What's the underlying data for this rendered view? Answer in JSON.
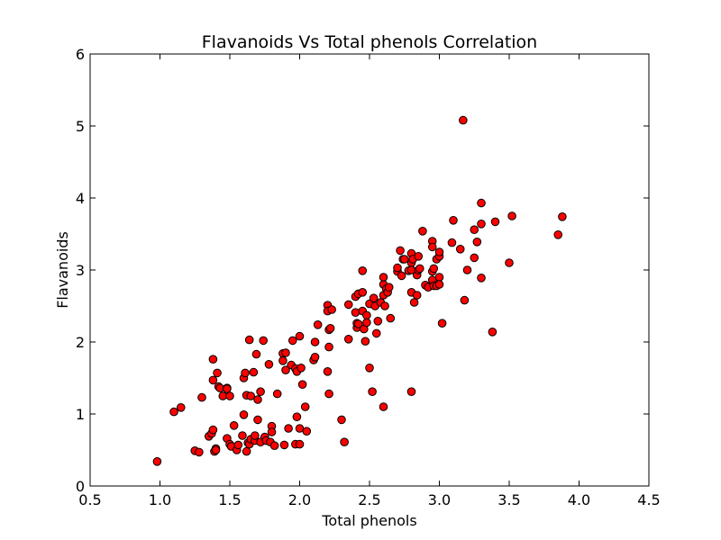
{
  "chart_data": {
    "type": "scatter",
    "title": "Flavanoids Vs Total phenols Correlation",
    "xlabel": "Total phenols",
    "ylabel": "Flavanoids",
    "xlim": [
      0.5,
      4.5
    ],
    "ylim": [
      0,
      6
    ],
    "xticks": [
      0.5,
      1.0,
      1.5,
      2.0,
      2.5,
      3.0,
      3.5,
      4.0,
      4.5
    ],
    "xtick_labels": [
      "0.5",
      "1.0",
      "1.5",
      "2.0",
      "2.5",
      "3.0",
      "3.5",
      "4.0",
      "4.5"
    ],
    "yticks": [
      0,
      1,
      2,
      3,
      4,
      5,
      6
    ],
    "ytick_labels": [
      "0",
      "1",
      "2",
      "3",
      "4",
      "5",
      "6"
    ],
    "grid": false,
    "marker_color": "#ff0000",
    "marker_edge_color": "#000000",
    "points": [
      [
        0.98,
        0.34
      ],
      [
        1.1,
        1.03
      ],
      [
        1.15,
        1.09
      ],
      [
        1.25,
        0.49
      ],
      [
        1.28,
        0.47
      ],
      [
        1.3,
        1.23
      ],
      [
        1.35,
        0.69
      ],
      [
        1.37,
        0.73
      ],
      [
        1.38,
        0.78
      ],
      [
        1.38,
        1.47
      ],
      [
        1.38,
        1.76
      ],
      [
        1.39,
        0.48
      ],
      [
        1.4,
        0.52
      ],
      [
        1.4,
        0.5
      ],
      [
        1.41,
        1.57
      ],
      [
        1.42,
        1.38
      ],
      [
        1.43,
        1.36
      ],
      [
        1.45,
        1.25
      ],
      [
        1.48,
        1.36
      ],
      [
        1.48,
        1.35
      ],
      [
        1.48,
        0.66
      ],
      [
        1.5,
        0.58
      ],
      [
        1.5,
        1.25
      ],
      [
        1.51,
        0.55
      ],
      [
        1.53,
        0.84
      ],
      [
        1.55,
        0.5
      ],
      [
        1.56,
        0.57
      ],
      [
        1.59,
        0.7
      ],
      [
        1.6,
        1.5
      ],
      [
        1.6,
        0.99
      ],
      [
        1.61,
        1.57
      ],
      [
        1.62,
        0.48
      ],
      [
        1.62,
        1.26
      ],
      [
        1.63,
        0.6
      ],
      [
        1.64,
        0.58
      ],
      [
        1.64,
        2.03
      ],
      [
        1.65,
        1.25
      ],
      [
        1.65,
        0.65
      ],
      [
        1.67,
        1.58
      ],
      [
        1.68,
        0.63
      ],
      [
        1.68,
        0.7
      ],
      [
        1.69,
        1.83
      ],
      [
        1.7,
        0.92
      ],
      [
        1.7,
        1.2
      ],
      [
        1.72,
        1.31
      ],
      [
        1.72,
        0.61
      ],
      [
        1.74,
        2.02
      ],
      [
        1.75,
        0.68
      ],
      [
        1.76,
        0.63
      ],
      [
        1.78,
        1.69
      ],
      [
        1.79,
        0.61
      ],
      [
        1.8,
        0.83
      ],
      [
        1.8,
        0.75
      ],
      [
        1.82,
        0.56
      ],
      [
        1.84,
        1.28
      ],
      [
        1.88,
        1.84
      ],
      [
        1.88,
        1.74
      ],
      [
        1.89,
        0.57
      ],
      [
        1.9,
        1.85
      ],
      [
        1.9,
        1.61
      ],
      [
        1.92,
        0.8
      ],
      [
        1.94,
        1.68
      ],
      [
        1.95,
        2.02
      ],
      [
        1.97,
        1.63
      ],
      [
        1.97,
        0.58
      ],
      [
        1.98,
        0.96
      ],
      [
        1.98,
        1.59
      ],
      [
        2.0,
        2.08
      ],
      [
        2.0,
        0.8
      ],
      [
        2.0,
        0.58
      ],
      [
        2.01,
        1.64
      ],
      [
        2.02,
        1.41
      ],
      [
        2.04,
        1.1
      ],
      [
        2.05,
        0.76
      ],
      [
        2.1,
        1.75
      ],
      [
        2.11,
        1.79
      ],
      [
        2.11,
        2.0
      ],
      [
        2.13,
        2.24
      ],
      [
        2.2,
        2.51
      ],
      [
        2.2,
        2.43
      ],
      [
        2.2,
        1.59
      ],
      [
        2.21,
        1.93
      ],
      [
        2.21,
        1.28
      ],
      [
        2.21,
        2.17
      ],
      [
        2.22,
        2.19
      ],
      [
        2.23,
        2.45
      ],
      [
        2.3,
        0.92
      ],
      [
        2.32,
        0.61
      ],
      [
        2.35,
        2.52
      ],
      [
        2.35,
        2.04
      ],
      [
        2.4,
        2.41
      ],
      [
        2.4,
        2.63
      ],
      [
        2.41,
        2.2
      ],
      [
        2.41,
        2.26
      ],
      [
        2.42,
        2.67
      ],
      [
        2.42,
        2.25
      ],
      [
        2.45,
        2.99
      ],
      [
        2.45,
        2.43
      ],
      [
        2.45,
        2.69
      ],
      [
        2.46,
        2.18
      ],
      [
        2.47,
        2.01
      ],
      [
        2.48,
        2.37
      ],
      [
        2.48,
        2.27
      ],
      [
        2.5,
        1.64
      ],
      [
        2.5,
        2.53
      ],
      [
        2.52,
        1.31
      ],
      [
        2.53,
        2.61
      ],
      [
        2.54,
        2.5
      ],
      [
        2.55,
        2.12
      ],
      [
        2.56,
        2.29
      ],
      [
        2.58,
        2.55
      ],
      [
        2.6,
        2.65
      ],
      [
        2.6,
        2.8
      ],
      [
        2.6,
        2.9
      ],
      [
        2.6,
        1.1
      ],
      [
        2.61,
        2.5
      ],
      [
        2.62,
        2.74
      ],
      [
        2.63,
        2.69
      ],
      [
        2.64,
        2.76
      ],
      [
        2.65,
        2.33
      ],
      [
        2.7,
        2.98
      ],
      [
        2.7,
        3.03
      ],
      [
        2.72,
        3.27
      ],
      [
        2.73,
        2.92
      ],
      [
        2.74,
        3.15
      ],
      [
        2.75,
        3.15
      ],
      [
        2.78,
        2.99
      ],
      [
        2.8,
        3.1
      ],
      [
        2.8,
        2.69
      ],
      [
        2.8,
        3.23
      ],
      [
        2.8,
        3.0
      ],
      [
        2.8,
        1.31
      ],
      [
        2.81,
        3.15
      ],
      [
        2.82,
        2.55
      ],
      [
        2.84,
        2.93
      ],
      [
        2.84,
        2.65
      ],
      [
        2.85,
        3.0
      ],
      [
        2.85,
        3.19
      ],
      [
        2.86,
        3.02
      ],
      [
        2.88,
        3.54
      ],
      [
        2.9,
        2.79
      ],
      [
        2.92,
        2.76
      ],
      [
        2.95,
        2.98
      ],
      [
        2.95,
        3.4
      ],
      [
        2.95,
        3.32
      ],
      [
        2.95,
        2.86
      ],
      [
        2.96,
        2.78
      ],
      [
        2.96,
        3.02
      ],
      [
        2.98,
        3.15
      ],
      [
        2.98,
        2.78
      ],
      [
        3.0,
        2.9
      ],
      [
        3.0,
        3.19
      ],
      [
        3.0,
        2.8
      ],
      [
        3.0,
        3.25
      ],
      [
        3.02,
        2.26
      ],
      [
        3.09,
        3.38
      ],
      [
        3.1,
        3.69
      ],
      [
        3.15,
        3.29
      ],
      [
        3.17,
        5.08
      ],
      [
        3.18,
        2.58
      ],
      [
        3.2,
        3.0
      ],
      [
        3.25,
        3.56
      ],
      [
        3.25,
        3.17
      ],
      [
        3.27,
        3.39
      ],
      [
        3.3,
        2.89
      ],
      [
        3.3,
        3.64
      ],
      [
        3.3,
        3.93
      ],
      [
        3.38,
        2.14
      ],
      [
        3.4,
        3.67
      ],
      [
        3.5,
        3.1
      ],
      [
        3.52,
        3.75
      ],
      [
        3.85,
        3.49
      ],
      [
        3.88,
        3.74
      ]
    ]
  }
}
